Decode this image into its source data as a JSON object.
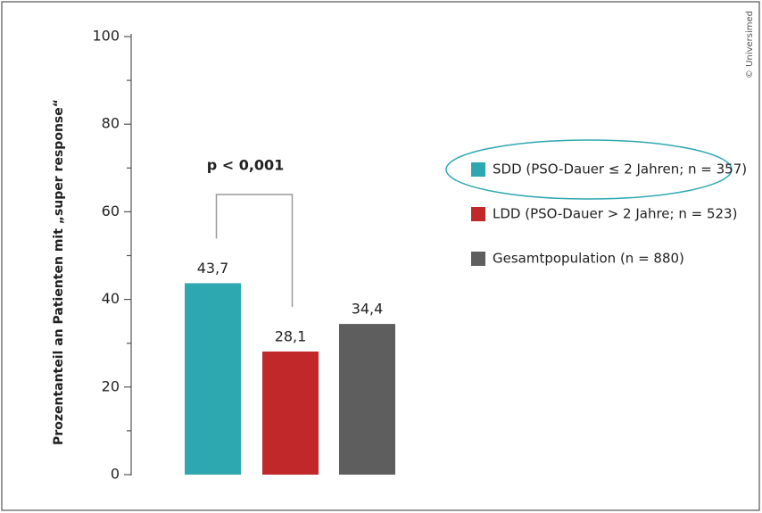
{
  "chart_data": {
    "type": "bar",
    "ylabel": "Prozentanteil an Patienten mit „super response“",
    "series": [
      {
        "name": "SDD (PSO-Dauer ≤ 2 Jahren; n = 357)",
        "color": "#2ea8b0",
        "values": [
          43.7
        ],
        "value_labels": [
          "43,7"
        ]
      },
      {
        "name": "LDD (PSO-Dauer > 2 Jahre; n = 523)",
        "color": "#c0282a",
        "values": [
          28.1
        ],
        "value_labels": [
          "28,1"
        ]
      },
      {
        "name": "Gesamtpopulation (n = 880)",
        "color": "#5e5e5e",
        "values": [
          34.4
        ],
        "value_labels": [
          "34,4"
        ]
      }
    ],
    "ylim": [
      0,
      100
    ],
    "yticks": [
      0,
      20,
      40,
      60,
      80,
      100
    ],
    "minor_yticks": [
      10,
      30,
      50,
      70,
      90
    ],
    "annotation": "p < 0,001",
    "credit": "© Universimed"
  }
}
